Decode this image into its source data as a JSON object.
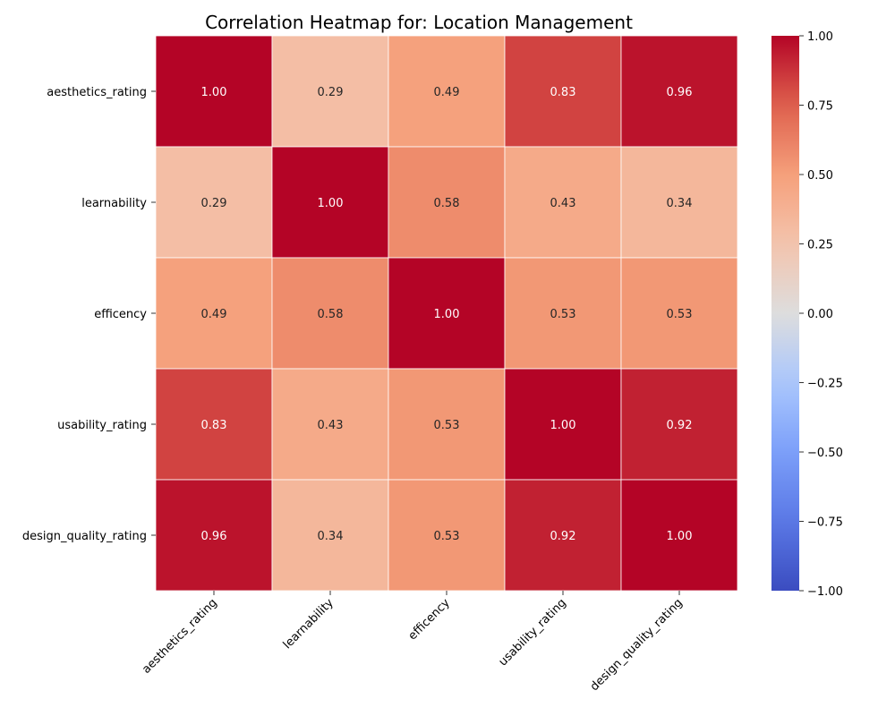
{
  "chart_data": {
    "type": "heatmap",
    "title": "Correlation Heatmap for: Location Management",
    "x_labels": [
      "aesthetics_rating",
      "learnability",
      "efficency",
      "usability_rating",
      "design_quality_rating"
    ],
    "y_labels": [
      "aesthetics_rating",
      "learnability",
      "efficency",
      "usability_rating",
      "design_quality_rating"
    ],
    "values": [
      [
        1.0,
        0.29,
        0.49,
        0.83,
        0.96
      ],
      [
        0.29,
        1.0,
        0.58,
        0.43,
        0.34
      ],
      [
        0.49,
        0.58,
        1.0,
        0.53,
        0.53
      ],
      [
        0.83,
        0.43,
        0.53,
        1.0,
        0.92
      ],
      [
        0.96,
        0.34,
        0.53,
        0.92,
        1.0
      ]
    ],
    "value_format": "2 decimals",
    "colormap": "coolwarm",
    "vmin": -1.0,
    "vmax": 1.0,
    "colorbar_ticks": [
      "1.00",
      "0.75",
      "0.50",
      "0.25",
      "0.00",
      "−0.25",
      "−0.50",
      "−0.75",
      "−1.00"
    ],
    "colorbar_tick_values": [
      1.0,
      0.75,
      0.5,
      0.25,
      0.0,
      -0.25,
      -0.5,
      -0.75,
      -1.0
    ],
    "colorbar_position": "right",
    "grid_line_color": "#ffffff"
  }
}
